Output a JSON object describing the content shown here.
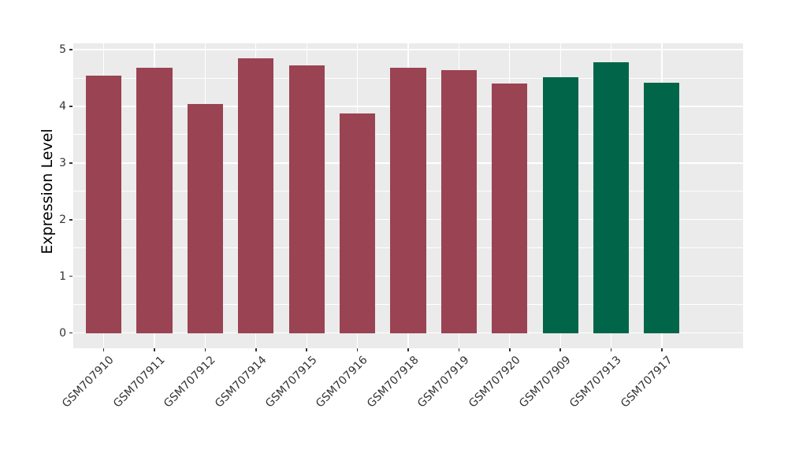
{
  "style": {
    "figure_bg": "#FFFFFF",
    "panel_bg": "#EBEBEB",
    "grid_color": "#FFFFFF",
    "tick_label_color": "#333333",
    "axis_title_color": "#000000",
    "bar_color_main": "#9A4352",
    "bar_color_highlight": "#016649"
  },
  "chart_data": {
    "type": "bar",
    "title": "",
    "xlabel": "",
    "ylabel": "Expression Level",
    "ylim": [
      0,
      5
    ],
    "yticks": [
      0,
      1,
      2,
      3,
      4,
      5
    ],
    "yticks_minor": [
      0.5,
      1.5,
      2.5,
      3.5,
      4.5
    ],
    "grid": "white major and minor horizontal lines plus vertical lines at category centers on grey panel",
    "legend_position": "none",
    "x_tick_rotation_deg": 45,
    "categories": [
      "GSM707910",
      "GSM707911",
      "GSM707912",
      "GSM707914",
      "GSM707915",
      "GSM707916",
      "GSM707918",
      "GSM707919",
      "GSM707920",
      "GSM707909",
      "GSM707913",
      "GSM707917"
    ],
    "values": [
      4.54,
      4.68,
      4.04,
      4.85,
      4.72,
      3.87,
      4.68,
      4.64,
      4.4,
      4.51,
      4.78,
      4.42
    ],
    "colors": [
      "#9A4352",
      "#9A4352",
      "#9A4352",
      "#9A4352",
      "#9A4352",
      "#9A4352",
      "#9A4352",
      "#9A4352",
      "#9A4352",
      "#016649",
      "#016649",
      "#016649"
    ]
  }
}
